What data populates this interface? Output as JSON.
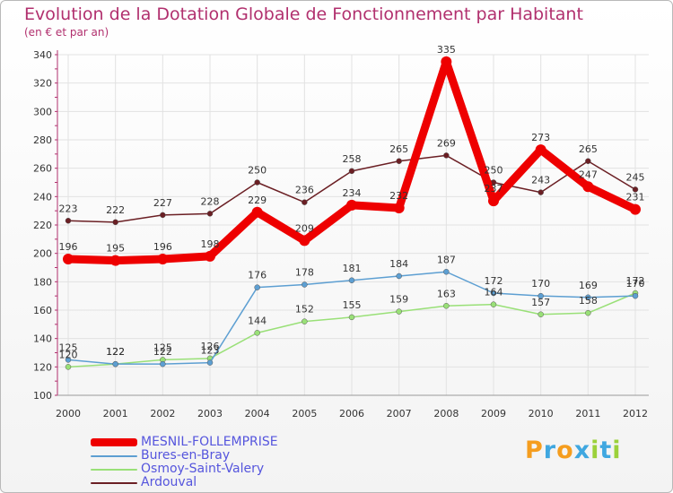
{
  "chart_data": {
    "type": "line",
    "title": "Evolution de la Dotation Globale de Fonctionnement par Habitant",
    "subtitle": "(en € et par an)",
    "xlabel": "",
    "ylabel": "",
    "categories": [
      "2000",
      "2001",
      "2002",
      "2003",
      "2004",
      "2005",
      "2006",
      "2007",
      "2008",
      "2009",
      "2010",
      "2011",
      "2012"
    ],
    "ylim": [
      100,
      340
    ],
    "yticks": [
      100,
      120,
      140,
      160,
      180,
      200,
      220,
      240,
      260,
      280,
      300,
      320,
      340
    ],
    "grid": true,
    "legend_position": "bottom-left",
    "series": [
      {
        "name": "Ardouval",
        "color": "#6b1f24",
        "values": [
          223,
          222,
          227,
          228,
          250,
          236,
          258,
          265,
          269,
          250,
          243,
          265,
          245
        ]
      },
      {
        "name": "Osmoy-Saint-Valery",
        "color": "#99e077",
        "values": [
          120,
          122,
          125,
          126,
          144,
          152,
          155,
          159,
          163,
          164,
          157,
          158,
          172
        ]
      },
      {
        "name": "Bures-en-Bray",
        "color": "#5d9fd2",
        "values": [
          125,
          122,
          122,
          123,
          176,
          178,
          181,
          184,
          187,
          172,
          170,
          169,
          170
        ]
      },
      {
        "name": "MESNIL-FOLLEMPRISE",
        "color": "#ee0000",
        "values": [
          196,
          195,
          196,
          198,
          229,
          209,
          234,
          232,
          335,
          237,
          273,
          247,
          231
        ]
      }
    ],
    "legend": [
      "MESNIL-FOLLEMPRISE",
      "Bures-en-Bray",
      "Osmoy-Saint-Valery",
      "Ardouval"
    ]
  },
  "brand": {
    "letters": [
      "P",
      "r",
      "o",
      "x",
      "i",
      "t",
      "i"
    ],
    "colors": [
      "#f59d1e",
      "#3fa7e0",
      "#f59d1e",
      "#3fa7e0",
      "#9bd13a",
      "#3fa7e0",
      "#9bd13a"
    ]
  }
}
